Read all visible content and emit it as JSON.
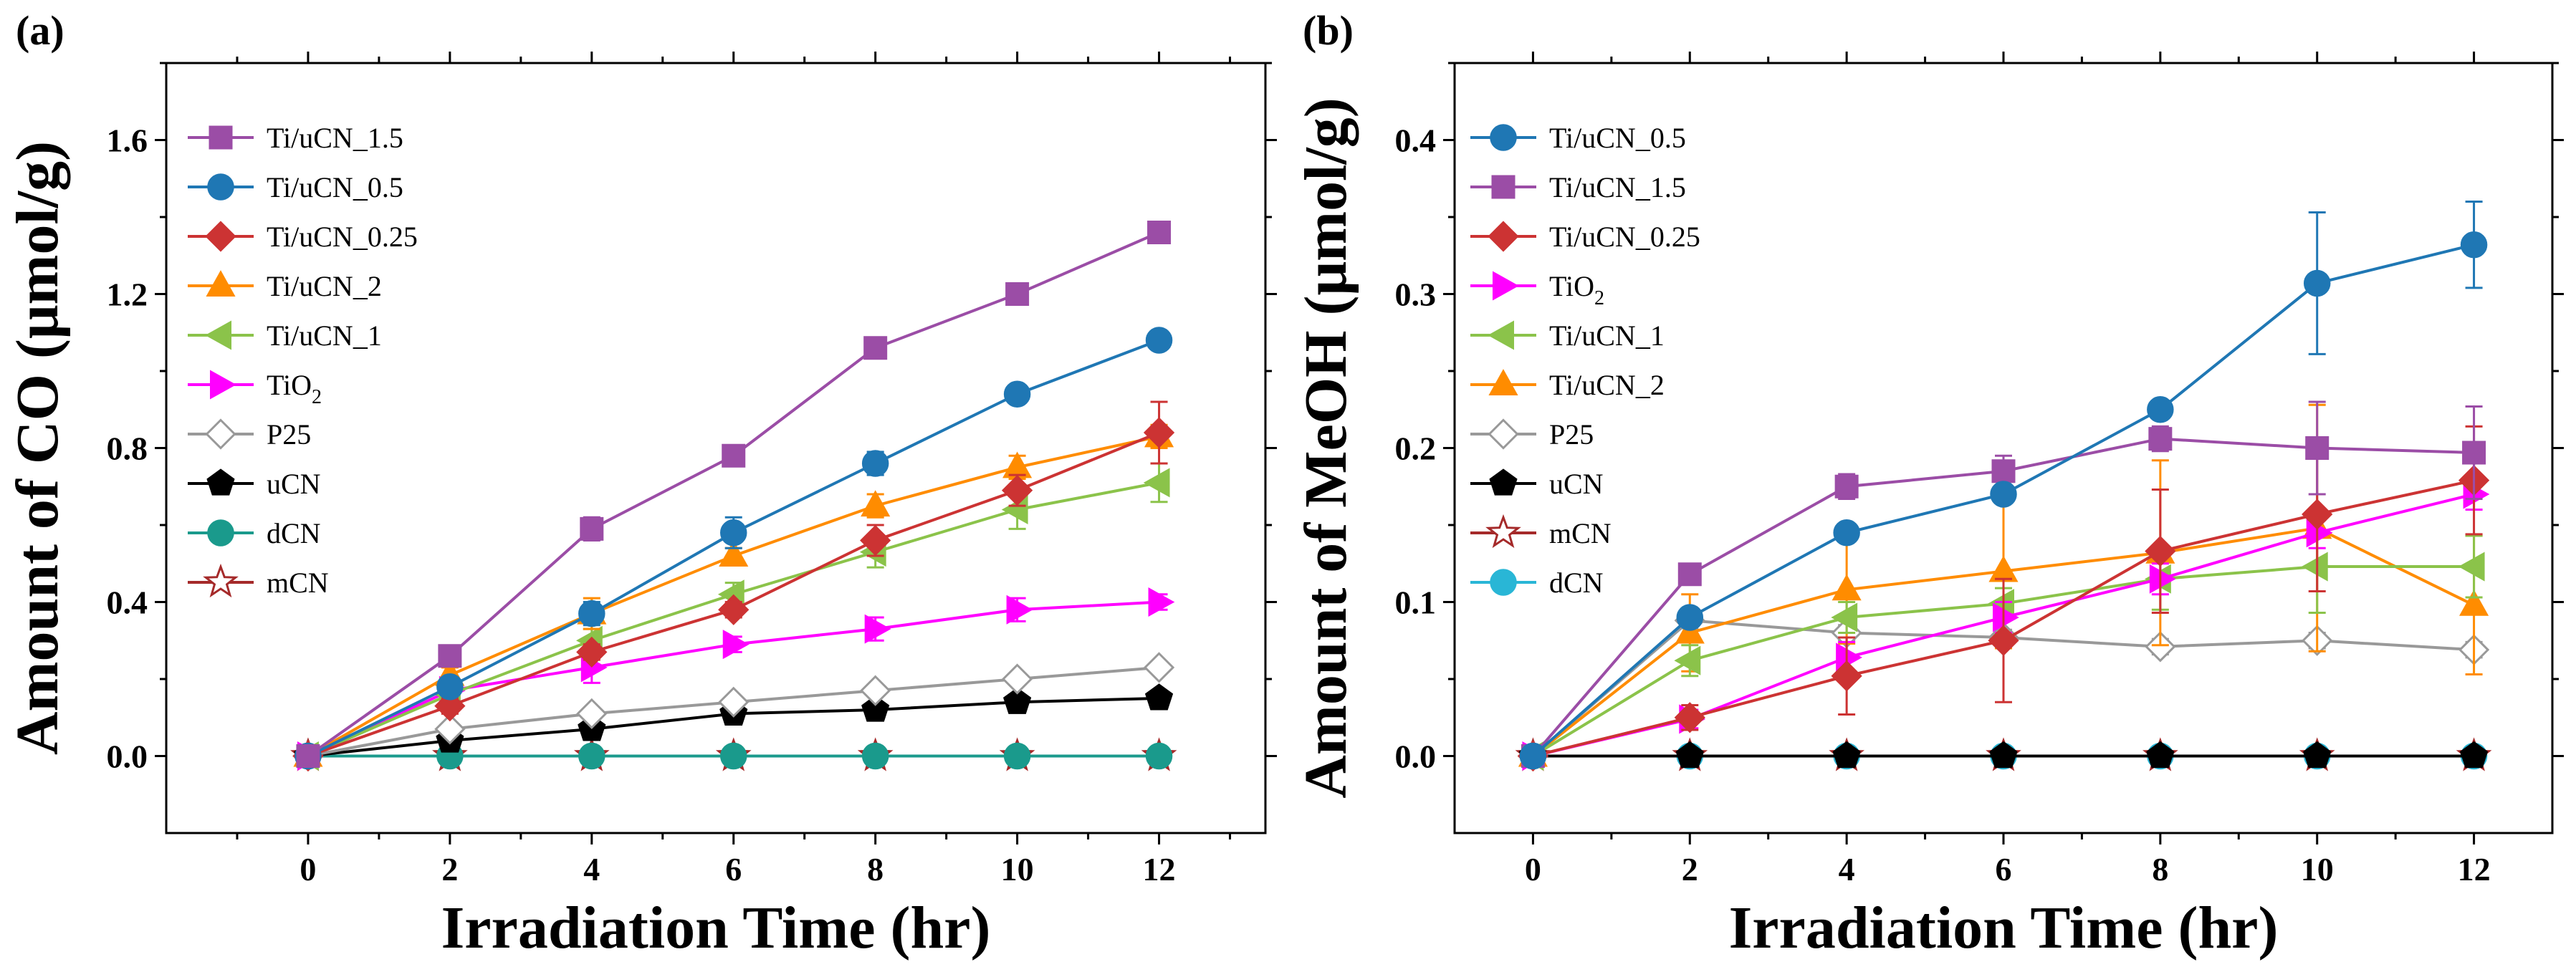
{
  "chart_data": [
    {
      "id": "a",
      "type": "line",
      "panel_label": "(a)",
      "title": "",
      "xlabel": "Irradiation Time (hr)",
      "ylabel": "Amount of CO (μmol/g)",
      "xlim": [
        -2,
        13.5
      ],
      "ylim": [
        -0.2,
        1.8
      ],
      "xticks": [
        0,
        2,
        4,
        6,
        8,
        10,
        12
      ],
      "xtick_labels": [
        "0",
        "2",
        "4",
        "6",
        "8",
        "10",
        "12"
      ],
      "yticks": [
        0.0,
        0.4,
        0.8,
        1.2,
        1.6
      ],
      "ytick_labels": [
        "0.0",
        "0.4",
        "0.8",
        "1.2",
        "1.6"
      ],
      "legend_position": "top-left",
      "x": [
        0,
        2,
        4,
        6,
        8,
        10,
        12
      ],
      "series": [
        {
          "name": "Ti/uCN_1.5",
          "sub": "",
          "color": "#9b4da6",
          "marker": "square",
          "fill": true,
          "values": [
            0,
            0.26,
            0.59,
            0.78,
            1.06,
            1.2,
            1.36
          ],
          "errors": [
            0,
            0.01,
            0.03,
            0.015,
            0.015,
            0.015,
            0.015
          ]
        },
        {
          "name": "Ti/uCN_0.5",
          "sub": "",
          "color": "#1f77b4",
          "marker": "circle",
          "fill": true,
          "values": [
            0,
            0.18,
            0.37,
            0.58,
            0.76,
            0.94,
            1.08
          ],
          "errors": [
            0,
            0.02,
            0.03,
            0.04,
            0.03,
            0.02,
            0.02
          ]
        },
        {
          "name": "Ti/uCN_0.25",
          "sub": "",
          "color": "#cc3333",
          "marker": "diamond",
          "fill": true,
          "values": [
            0,
            0.13,
            0.27,
            0.38,
            0.56,
            0.69,
            0.84
          ],
          "errors": [
            0,
            0.02,
            0.02,
            0.02,
            0.04,
            0.04,
            0.08
          ]
        },
        {
          "name": "Ti/uCN_2",
          "sub": "",
          "color": "#ff8c00",
          "marker": "triangle-up",
          "fill": true,
          "values": [
            0,
            0.21,
            0.37,
            0.52,
            0.65,
            0.75,
            0.83
          ],
          "errors": [
            0,
            0.02,
            0.04,
            0.02,
            0.03,
            0.03,
            0.03
          ]
        },
        {
          "name": "Ti/uCN_1",
          "sub": "",
          "color": "#8bc34a",
          "marker": "triangle-left",
          "fill": true,
          "values": [
            0,
            0.16,
            0.3,
            0.42,
            0.53,
            0.64,
            0.71
          ],
          "errors": [
            0,
            0.02,
            0.03,
            0.03,
            0.04,
            0.05,
            0.05
          ]
        },
        {
          "name": "TiO",
          "sub": "2",
          "color": "#ff00ff",
          "marker": "triangle-right",
          "fill": true,
          "values": [
            0,
            0.17,
            0.23,
            0.29,
            0.33,
            0.38,
            0.4
          ],
          "errors": [
            0,
            0.02,
            0.04,
            0.02,
            0.03,
            0.03,
            0.02
          ]
        },
        {
          "name": "P25",
          "sub": "",
          "color": "#999999",
          "marker": "diamond",
          "fill": false,
          "values": [
            0,
            0.07,
            0.11,
            0.14,
            0.17,
            0.2,
            0.23
          ],
          "errors": [
            0,
            0.01,
            0.01,
            0.01,
            0.01,
            0.01,
            0.01
          ]
        },
        {
          "name": "uCN",
          "sub": "",
          "color": "#000000",
          "marker": "pentagon",
          "fill": true,
          "values": [
            0,
            0.04,
            0.07,
            0.11,
            0.12,
            0.14,
            0.15
          ],
          "errors": [
            0,
            0.005,
            0.01,
            0.01,
            0.01,
            0.01,
            0.01
          ]
        },
        {
          "name": "dCN",
          "sub": "",
          "color": "#1a9a8c",
          "marker": "circle",
          "fill": true,
          "values": [
            0,
            0,
            0,
            0,
            0,
            0,
            0
          ],
          "errors": [
            0,
            0,
            0,
            0,
            0,
            0,
            0
          ]
        },
        {
          "name": "mCN",
          "sub": "",
          "color": "#a52a2a",
          "marker": "star",
          "fill": false,
          "values": [
            0,
            0,
            0,
            0,
            0,
            0,
            0
          ],
          "errors": [
            0,
            0,
            0,
            0,
            0,
            0,
            0
          ]
        }
      ]
    },
    {
      "id": "b",
      "type": "line",
      "panel_label": "(b)",
      "title": "",
      "xlabel": "Irradiation Time (hr)",
      "ylabel": "Amount of MeOH (μmol/g)",
      "xlim": [
        -1,
        13
      ],
      "ylim": [
        -0.05,
        0.45
      ],
      "xticks": [
        0,
        2,
        4,
        6,
        8,
        10,
        12
      ],
      "xtick_labels": [
        "0",
        "2",
        "4",
        "6",
        "8",
        "10",
        "12"
      ],
      "yticks": [
        0.0,
        0.1,
        0.2,
        0.3,
        0.4
      ],
      "ytick_labels": [
        "0.0",
        "0.1",
        "0.2",
        "0.3",
        "0.4"
      ],
      "legend_position": "top-left",
      "x": [
        0,
        2,
        4,
        6,
        8,
        10,
        12
      ],
      "series": [
        {
          "name": "Ti/uCN_0.5",
          "sub": "",
          "color": "#1f77b4",
          "marker": "circle",
          "fill": true,
          "values": [
            0,
            0.09,
            0.145,
            0.17,
            0.225,
            0.307,
            0.332
          ],
          "errors": [
            0,
            0.005,
            0.005,
            0.005,
            0.005,
            0.046,
            0.028
          ]
        },
        {
          "name": "Ti/uCN_1.5",
          "sub": "",
          "color": "#9b4da6",
          "marker": "square",
          "fill": true,
          "values": [
            0,
            0.118,
            0.175,
            0.185,
            0.206,
            0.2,
            0.197
          ],
          "errors": [
            0,
            0.005,
            0.008,
            0.01,
            0.008,
            0.03,
            0.03
          ]
        },
        {
          "name": "Ti/uCN_0.25",
          "sub": "",
          "color": "#cc3333",
          "marker": "diamond",
          "fill": true,
          "values": [
            0,
            0.025,
            0.052,
            0.075,
            0.133,
            0.157,
            0.179
          ],
          "errors": [
            0,
            0.008,
            0.025,
            0.04,
            0.04,
            0.05,
            0.035
          ]
        },
        {
          "name": "TiO",
          "sub": "2",
          "color": "#ff00ff",
          "marker": "triangle-right",
          "fill": true,
          "values": [
            0,
            0.024,
            0.064,
            0.09,
            0.115,
            0.145,
            0.17
          ],
          "errors": [
            0,
            0.006,
            0.01,
            0.01,
            0.01,
            0.01,
            0.01
          ]
        },
        {
          "name": "Ti/uCN_1",
          "sub": "",
          "color": "#8bc34a",
          "marker": "triangle-left",
          "fill": true,
          "values": [
            0,
            0.062,
            0.09,
            0.099,
            0.115,
            0.123,
            0.123
          ],
          "errors": [
            0,
            0.01,
            0.01,
            0.01,
            0.02,
            0.03,
            0.02
          ]
        },
        {
          "name": "Ti/uCN_2",
          "sub": "",
          "color": "#ff8c00",
          "marker": "triangle-up",
          "fill": true,
          "values": [
            0,
            0.08,
            0.108,
            0.12,
            0.132,
            0.148,
            0.098
          ],
          "errors": [
            0,
            0.025,
            0.035,
            0.05,
            0.06,
            0.08,
            0.045
          ]
        },
        {
          "name": "P25",
          "sub": "",
          "color": "#999999",
          "marker": "diamond",
          "fill": false,
          "values": [
            0,
            0.088,
            0.08,
            0.077,
            0.071,
            0.075,
            0.069
          ],
          "errors": [
            0,
            0.005,
            0.005,
            0.005,
            0.005,
            0.005,
            0.005
          ]
        },
        {
          "name": "uCN",
          "sub": "",
          "color": "#000000",
          "marker": "pentagon",
          "fill": true,
          "values": [
            0,
            0,
            0,
            0,
            0,
            0,
            0
          ],
          "errors": [
            0,
            0,
            0,
            0,
            0,
            0,
            0
          ]
        },
        {
          "name": "mCN",
          "sub": "",
          "color": "#a52a2a",
          "marker": "star",
          "fill": false,
          "values": [
            0,
            0,
            0,
            0,
            0,
            0,
            0
          ],
          "errors": [
            0,
            0,
            0,
            0,
            0,
            0,
            0
          ]
        },
        {
          "name": "dCN",
          "sub": "",
          "color": "#29b6d6",
          "marker": "circle",
          "fill": true,
          "values": [
            0,
            0,
            0,
            0,
            0,
            0,
            0
          ],
          "errors": [
            0,
            0,
            0,
            0,
            0,
            0,
            0
          ]
        }
      ]
    }
  ]
}
